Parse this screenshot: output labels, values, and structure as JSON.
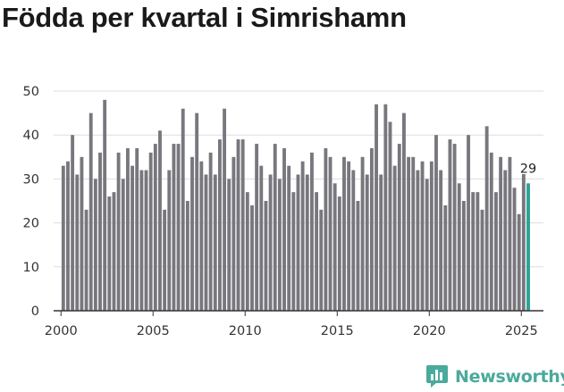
{
  "page": {
    "title": "Födda per kvartal i Simrishamn"
  },
  "brand": {
    "name": "Newsworthy",
    "icon": "newsworthy-logo-icon"
  },
  "colors": {
    "bar": "#78777d",
    "highlight": "#2aa194",
    "grid": "#dddddd",
    "axis": "#333333",
    "brand": "#4aaa9c"
  },
  "chart_data": {
    "type": "bar",
    "title": "Födda per kvartal i Simrishamn",
    "xlabel": "",
    "ylabel": "",
    "ylim": [
      0,
      50
    ],
    "yticks": [
      0,
      10,
      20,
      30,
      40,
      50
    ],
    "xlim": [
      1999.6,
      2026.2
    ],
    "xticks": [
      2000,
      2005,
      2010,
      2015,
      2020,
      2025
    ],
    "grid": true,
    "start": {
      "year": 2000,
      "quarter": 1
    },
    "values": [
      33,
      34,
      40,
      31,
      35,
      23,
      45,
      30,
      36,
      48,
      26,
      27,
      36,
      30,
      37,
      33,
      37,
      32,
      32,
      36,
      38,
      41,
      23,
      32,
      38,
      38,
      46,
      25,
      35,
      45,
      34,
      31,
      36,
      31,
      39,
      46,
      30,
      35,
      39,
      39,
      27,
      24,
      38,
      33,
      25,
      31,
      38,
      30,
      37,
      33,
      27,
      31,
      34,
      31,
      36,
      27,
      23,
      37,
      35,
      29,
      26,
      35,
      34,
      32,
      25,
      35,
      31,
      37,
      47,
      31,
      47,
      43,
      33,
      38,
      45,
      35,
      35,
      32,
      34,
      30,
      34,
      40,
      32,
      24,
      39,
      38,
      29,
      25,
      40,
      27,
      27,
      23,
      42,
      36,
      27,
      35,
      32,
      35,
      28,
      22,
      32,
      29
    ],
    "highlight_last": true,
    "last_label": "29"
  }
}
